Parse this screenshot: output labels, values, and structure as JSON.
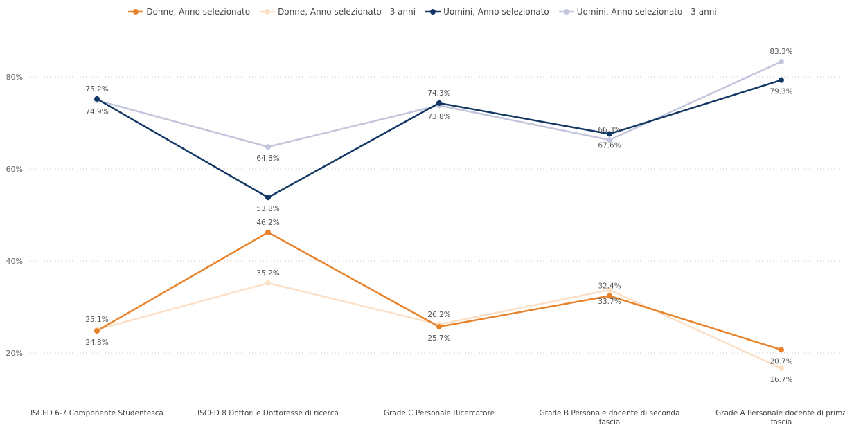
{
  "chart_data": {
    "type": "line",
    "categories": [
      [
        "ISCED 6-7 Componente Studentesca"
      ],
      [
        "ISCED 8 Dottori e Dottoresse di ricerca"
      ],
      [
        "Grade C Personale Ricercatore"
      ],
      [
        "Grade B Personale docente di seconda",
        "fascia"
      ],
      [
        "Grade A Personale docente di prima",
        "fascia"
      ]
    ],
    "yticks": [
      "20%",
      "40%",
      "60%",
      "80%"
    ],
    "ytick_values": [
      20,
      40,
      60,
      80
    ],
    "ylim": [
      13,
      90
    ],
    "legend_position": "top-center",
    "grid": "horizontal-dotted",
    "series": [
      {
        "name": "Donne, Anno selezionato",
        "color": "#E8822A",
        "values": [
          24.8,
          46.2,
          25.7,
          32.4,
          20.7
        ],
        "labels": [
          "24.8%",
          "46.2%",
          "25.7%",
          "32.4%",
          "20.7%"
        ],
        "label_pos": [
          "below",
          "above",
          "below",
          "above",
          "below"
        ]
      },
      {
        "name": "Donne, Anno selezionato - 3 anni",
        "color": "#FBDFC7",
        "values": [
          25.1,
          35.2,
          26.2,
          33.7,
          16.7
        ],
        "labels": [
          "25.1%",
          "35.2%",
          "26.2%",
          "33.7%",
          "16.7%"
        ],
        "label_pos": [
          "above",
          "above",
          "above",
          "below",
          "below"
        ]
      },
      {
        "name": "Uomini, Anno selezionato",
        "color": "#123764",
        "values": [
          75.2,
          53.8,
          74.3,
          67.6,
          79.3
        ],
        "labels": [
          "75.2%",
          "53.8%",
          "74.3%",
          "67.6%",
          "79.3%"
        ],
        "label_pos": [
          "above",
          "below",
          "above",
          "below",
          "below"
        ]
      },
      {
        "name": "Uomini, Anno selezionato - 3 anni",
        "color": "#C2C5DC",
        "values": [
          74.9,
          64.8,
          73.8,
          66.3,
          83.3
        ],
        "labels": [
          "74.9%",
          "64.8%",
          "73.8%",
          "66.3%",
          "83.3%"
        ],
        "label_pos": [
          "below",
          "below",
          "below",
          "above",
          "above"
        ]
      }
    ]
  }
}
